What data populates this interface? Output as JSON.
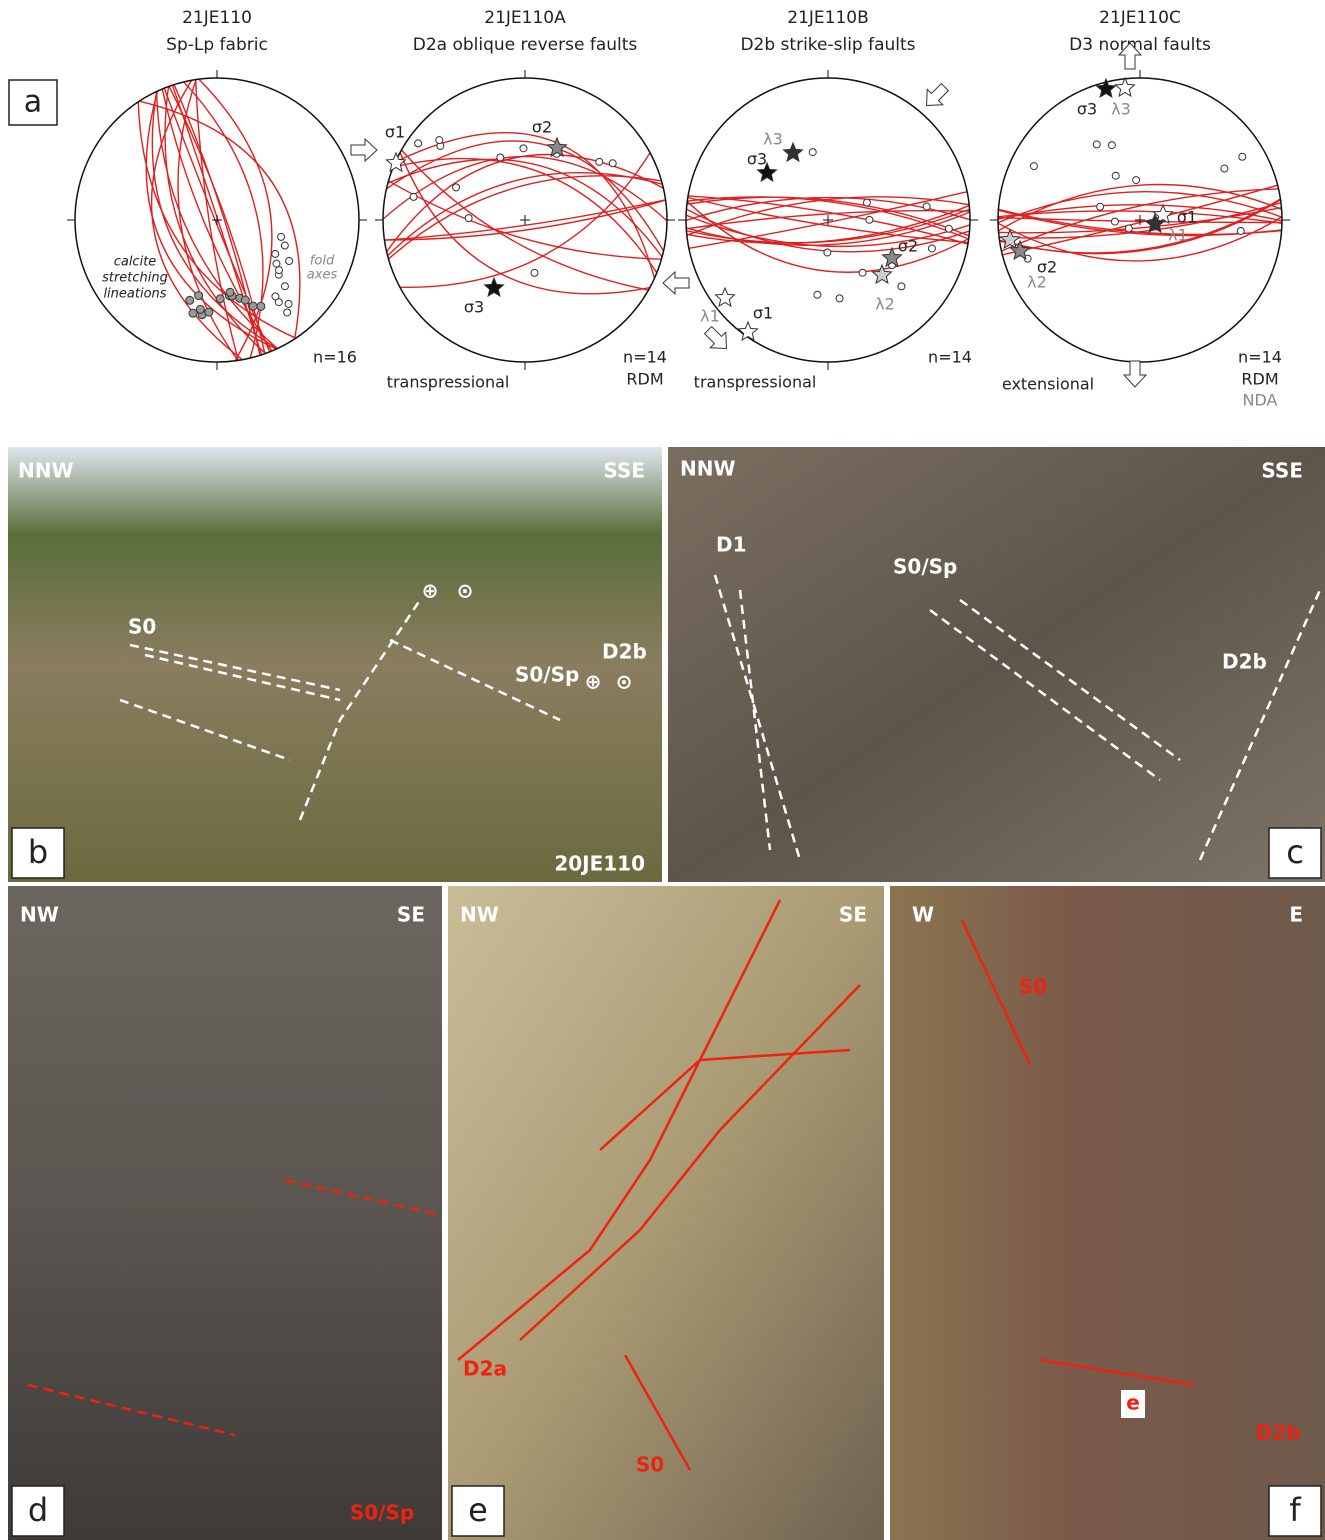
{
  "panel_a": {
    "label": "a",
    "nets": [
      {
        "sample": "21JE110",
        "title": "Sp-Lp fabric",
        "labels": [
          "calcite",
          "stretching",
          "lineations",
          "fold",
          "axes",
          "n=16"
        ]
      },
      {
        "sample": "21JE110A",
        "title": "D2a oblique reverse faults",
        "labels": [
          "σ1",
          "σ2",
          "σ3",
          "n=14",
          "RDM",
          "transpressional"
        ]
      },
      {
        "sample": "21JE110B",
        "title": "D2b strike-slip faults",
        "labels": [
          "λ3",
          "σ3",
          "σ2",
          "λ2",
          "λ1",
          "σ1",
          "n=14",
          "transpressional"
        ]
      },
      {
        "sample": "21JE110C",
        "title": "D3 normal faults",
        "labels": [
          "σ3",
          "λ3",
          "σ1",
          "λ1",
          "σ2",
          "λ2",
          "n=14",
          "RDM",
          "NDA",
          "extensional"
        ]
      }
    ]
  },
  "photos": [
    {
      "label": "b",
      "texts": [
        "NNW",
        "SSE",
        "S0",
        "⊕",
        "⊙",
        "S0/Sp",
        "D2b",
        "⊕",
        "⊙",
        "20JE110"
      ]
    },
    {
      "label": "c",
      "texts": [
        "NNW",
        "SSE",
        "D1",
        "S0/Sp",
        "D2b"
      ]
    },
    {
      "label": "d",
      "texts": [
        "NW",
        "SE",
        "S0/Sp"
      ]
    },
    {
      "label": "e",
      "texts": [
        "NW",
        "SE",
        "D2a",
        "S0"
      ]
    },
    {
      "label": "f",
      "texts": [
        "W",
        "E",
        "S0",
        "e",
        "D2b"
      ]
    }
  ]
}
